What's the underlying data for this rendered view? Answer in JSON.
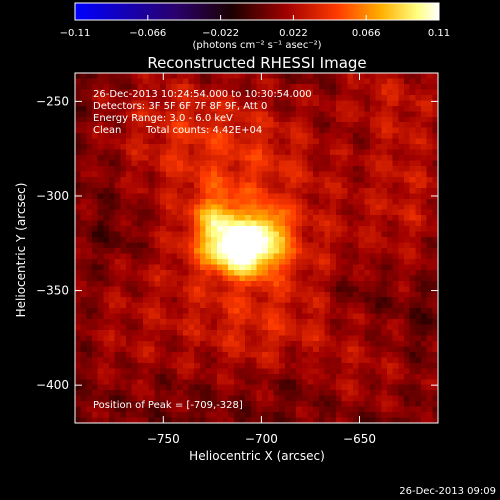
{
  "chart_data": {
    "type": "heatmap",
    "title": "Reconstructed RHESSI Image",
    "xlabel": "Heliocentric X (arcsec)",
    "ylabel": "Heliocentric Y (arcsec)",
    "xlim": [
      -795,
      -610
    ],
    "ylim": [
      -420,
      -235
    ],
    "x_ticks": [
      -750,
      -700,
      -650
    ],
    "y_ticks": [
      -250,
      -300,
      -350,
      -400
    ],
    "colorbar": {
      "range": [
        -0.11,
        0.11
      ],
      "ticks": [
        "-0.11",
        "-0.066",
        "-0.022",
        "0.022",
        "0.066",
        "0.11"
      ],
      "units": "(photons cm⁻² s⁻¹ asec⁻²)",
      "colors": [
        "#0000ff",
        "#2a006a",
        "#1a0000",
        "#a00000",
        "#ff3a00",
        "#ffae00",
        "#ffff80",
        "#ffffff"
      ]
    },
    "annotations": [
      "26-Dec-2013 10:24:54.000 to 10:30:54.000",
      "Detectors: 3F 5F 6F 7F 8F 9F, Att 0",
      "Energy Range: 3.0 - 6.0 keV",
      "Clean",
      "Total counts: 4.42E+04"
    ],
    "peak_label": "Position of Peak = [-709,-328]",
    "peak": {
      "x": -709,
      "y": -328,
      "value": 0.11
    },
    "sources": [
      {
        "x": -709,
        "y": -328,
        "sx": 13,
        "sy": 9,
        "amp": 0.1
      },
      {
        "x": -722,
        "y": -312,
        "sx": 9,
        "sy": 10,
        "amp": 0.045
      },
      {
        "x": -696,
        "y": -314,
        "sx": 7,
        "sy": 7,
        "amp": 0.035
      },
      {
        "x": -705,
        "y": -325,
        "sx": 40,
        "sy": 34,
        "amp": 0.03
      },
      {
        "x": -745,
        "y": -262,
        "sx": 26,
        "sy": 22,
        "amp": 0.022
      },
      {
        "x": -705,
        "y": -275,
        "sx": 28,
        "sy": 22,
        "amp": 0.018
      },
      {
        "x": -625,
        "y": -290,
        "sx": 16,
        "sy": 40,
        "amp": 0.02
      },
      {
        "x": -640,
        "y": -245,
        "sx": 20,
        "sy": 14,
        "amp": 0.014
      },
      {
        "x": -700,
        "y": -372,
        "sx": 30,
        "sy": 18,
        "amp": 0.018
      },
      {
        "x": -770,
        "y": -375,
        "sx": 20,
        "sy": 24,
        "amp": 0.012
      },
      {
        "x": -650,
        "y": -395,
        "sx": 25,
        "sy": 16,
        "amp": 0.012
      },
      {
        "x": -772,
        "y": -318,
        "sx": 12,
        "sy": 12,
        "amp": -0.01
      },
      {
        "x": -650,
        "y": -350,
        "sx": 14,
        "sy": 10,
        "amp": -0.012
      },
      {
        "x": -680,
        "y": -395,
        "sx": 10,
        "sy": 10,
        "amp": -0.01
      },
      {
        "x": -615,
        "y": -365,
        "sx": 10,
        "sy": 14,
        "amp": -0.008
      }
    ]
  },
  "footer": {
    "timestamp": "26-Dec-2013 09:09"
  }
}
